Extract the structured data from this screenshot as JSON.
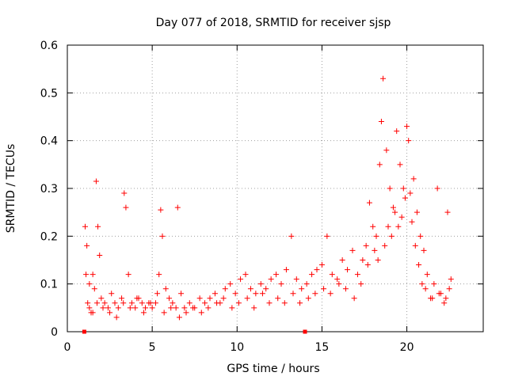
{
  "chart_data": {
    "type": "scatter",
    "title": "Day 077 of 2018, SRMTID for receiver sjsp",
    "xlabel": "GPS time / hours",
    "ylabel": "SRMTID / TECUs",
    "xlim": [
      0,
      24.5
    ],
    "ylim": [
      0,
      0.6
    ],
    "xticks": [
      0,
      5,
      10,
      15,
      20
    ],
    "xtick_labels": [
      "0",
      "5",
      "10",
      "15",
      "20"
    ],
    "yticks": [
      0,
      0.1,
      0.2,
      0.3,
      0.4,
      0.5,
      0.6
    ],
    "ytick_labels": [
      "0",
      "0.1",
      "0.2",
      "0.3",
      "0.4",
      "0.5",
      "0.6"
    ],
    "grid": true,
    "marker": "+",
    "color": "#ff0000",
    "series": [
      {
        "name": "SRMTID",
        "x": [
          1.05,
          1.15,
          1.2,
          1.3,
          1.4,
          1.5,
          1.6,
          1.7,
          1.8,
          1.9,
          2.0,
          2.2,
          2.4,
          2.6,
          2.8,
          3.0,
          3.2,
          3.35,
          3.45,
          3.6,
          3.8,
          4.0,
          4.2,
          4.4,
          4.6,
          4.8,
          5.0,
          5.2,
          5.4,
          5.5,
          5.6,
          5.8,
          6.0,
          6.2,
          6.4,
          6.5,
          6.7,
          6.9,
          7.2,
          7.5,
          7.8,
          8.1,
          8.4,
          8.7,
          9.0,
          9.3,
          9.6,
          9.9,
          10.2,
          10.5,
          10.8,
          11.1,
          11.4,
          11.7,
          12.0,
          12.3,
          12.6,
          12.9,
          13.2,
          13.5,
          13.8,
          14.1,
          14.4,
          14.7,
          15.0,
          15.3,
          15.6,
          15.9,
          16.2,
          16.5,
          16.8,
          17.1,
          17.4,
          17.6,
          17.8,
          18.0,
          18.2,
          18.4,
          18.5,
          18.6,
          18.8,
          19.0,
          19.2,
          19.4,
          19.6,
          19.8,
          20.0,
          20.1,
          20.2,
          20.4,
          20.6,
          20.8,
          21.0,
          21.2,
          21.4,
          21.6,
          21.8,
          22.0,
          22.2,
          22.4,
          22.6,
          1.1,
          1.3,
          1.5,
          1.75,
          2.1,
          2.5,
          2.9,
          3.3,
          3.7,
          4.1,
          4.5,
          4.9,
          5.3,
          5.7,
          6.1,
          6.6,
          7.0,
          7.4,
          7.9,
          8.3,
          8.8,
          9.2,
          9.7,
          10.1,
          10.6,
          11.0,
          11.5,
          11.9,
          12.4,
          12.8,
          13.3,
          13.7,
          14.2,
          14.6,
          15.1,
          15.5,
          16.0,
          16.4,
          16.9,
          17.3,
          17.7,
          18.1,
          18.3,
          18.7,
          18.9,
          19.1,
          19.3,
          19.5,
          19.7,
          19.9,
          20.3,
          20.5,
          20.7,
          20.9,
          21.1,
          21.5,
          21.9,
          22.3,
          22.5
        ],
        "y": [
          0.22,
          0.18,
          0.06,
          0.05,
          0.04,
          0.12,
          0.09,
          0.315,
          0.22,
          0.16,
          0.07,
          0.06,
          0.05,
          0.08,
          0.06,
          0.05,
          0.07,
          0.29,
          0.26,
          0.12,
          0.06,
          0.05,
          0.07,
          0.06,
          0.05,
          0.06,
          0.05,
          0.06,
          0.12,
          0.255,
          0.2,
          0.09,
          0.07,
          0.06,
          0.05,
          0.26,
          0.08,
          0.05,
          0.06,
          0.05,
          0.07,
          0.06,
          0.07,
          0.08,
          0.06,
          0.09,
          0.1,
          0.08,
          0.11,
          0.12,
          0.09,
          0.08,
          0.1,
          0.09,
          0.11,
          0.12,
          0.1,
          0.13,
          0.2,
          0.11,
          0.09,
          0.1,
          0.12,
          0.13,
          0.14,
          0.2,
          0.12,
          0.11,
          0.15,
          0.13,
          0.17,
          0.12,
          0.15,
          0.18,
          0.27,
          0.22,
          0.2,
          0.35,
          0.44,
          0.53,
          0.38,
          0.3,
          0.26,
          0.42,
          0.35,
          0.3,
          0.43,
          0.4,
          0.29,
          0.32,
          0.25,
          0.2,
          0.17,
          0.12,
          0.07,
          0.1,
          0.3,
          0.08,
          0.06,
          0.25,
          0.11,
          0.12,
          0.1,
          0.04,
          0.06,
          0.05,
          0.04,
          0.03,
          0.06,
          0.05,
          0.07,
          0.04,
          0.06,
          0.08,
          0.04,
          0.05,
          0.03,
          0.04,
          0.05,
          0.04,
          0.05,
          0.06,
          0.07,
          0.05,
          0.06,
          0.07,
          0.05,
          0.08,
          0.06,
          0.07,
          0.06,
          0.08,
          0.06,
          0.07,
          0.08,
          0.09,
          0.08,
          0.1,
          0.09,
          0.07,
          0.1,
          0.14,
          0.17,
          0.15,
          0.18,
          0.22,
          0.2,
          0.25,
          0.22,
          0.24,
          0.28,
          0.23,
          0.18,
          0.14,
          0.1,
          0.09,
          0.07,
          0.08,
          0.07,
          0.09
        ]
      }
    ],
    "markers_on_axis": [
      1.0,
      14.0
    ]
  }
}
